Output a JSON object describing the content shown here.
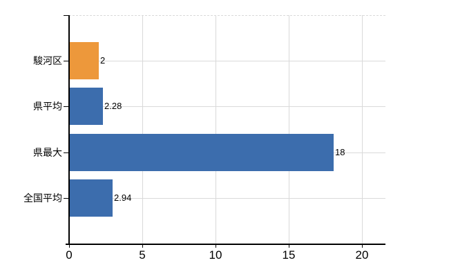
{
  "chart_data": {
    "type": "bar",
    "orientation": "horizontal",
    "title": "",
    "xlabel": "",
    "ylabel": "",
    "categories": [
      "駿河区",
      "県平均",
      "県最大",
      "全国平均"
    ],
    "values": [
      2,
      2.28,
      18,
      2.94
    ],
    "value_labels": [
      "2",
      "2.28",
      "18",
      "2.94"
    ],
    "bar_colors": [
      "#ED983B",
      "#3C6DAD",
      "#3C6DAD",
      "#3C6DAD"
    ],
    "x_axis": {
      "min": 0,
      "max": 20,
      "ticks": [
        0,
        5,
        10,
        15,
        20
      ],
      "tick_labels": [
        "0",
        "5",
        "10",
        "15",
        "20"
      ]
    },
    "grid": {
      "vertical": true,
      "horizontal": true,
      "color": "#D9D9D9",
      "top_border": "dashed"
    },
    "axis_color": "#000000",
    "text_color": "#000000",
    "background": "#FFFFFF",
    "legend": null
  }
}
